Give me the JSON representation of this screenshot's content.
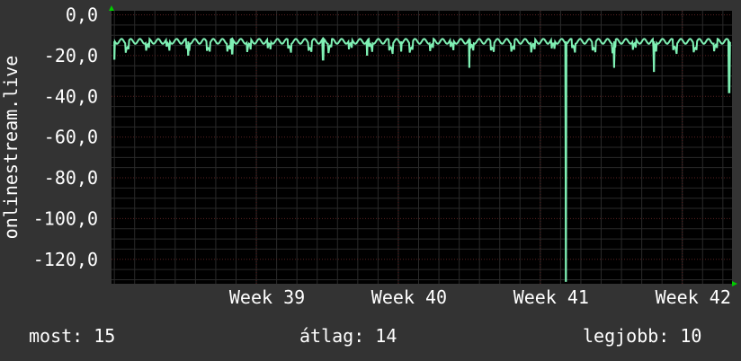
{
  "chart_data": {
    "type": "line",
    "ylabel": "onlinestream.live",
    "xlabel": "",
    "ylim": [
      -132,
      2
    ],
    "y_ticks": [
      0,
      -20,
      -40,
      -60,
      -80,
      -100,
      -120
    ],
    "y_tick_labels": [
      "0,0",
      "-20,0",
      "-40,0",
      "-60,0",
      "-80,0",
      "-100,0",
      "-120,0"
    ],
    "x_range_weeks": [
      37.98,
      42.35
    ],
    "x_ticks": [
      {
        "week": 39,
        "label": "Week 39"
      },
      {
        "week": 40,
        "label": "Week 40"
      },
      {
        "week": 41,
        "label": "Week 41"
      },
      {
        "week": 42,
        "label": "Week 42"
      }
    ],
    "series": [
      {
        "color": "#7ff0b4",
        "baseline": -13,
        "daily_dip": -18,
        "spikes": [
          {
            "week": 38.0,
            "value": -22
          },
          {
            "week": 38.52,
            "value": -20
          },
          {
            "week": 38.83,
            "value": -19
          },
          {
            "week": 39.47,
            "value": -22
          },
          {
            "week": 39.78,
            "value": -20
          },
          {
            "week": 40.02,
            "value": -18
          },
          {
            "week": 40.5,
            "value": -26
          },
          {
            "week": 41.18,
            "value": -131
          },
          {
            "week": 41.52,
            "value": -26
          },
          {
            "week": 41.8,
            "value": -28
          },
          {
            "week": 42.33,
            "value": -38
          }
        ]
      }
    ],
    "grid": true
  },
  "colors": {
    "background": "#333333",
    "plot_background": "#000000",
    "grid_major": "#5a2222",
    "grid_minor": "#2a2a2a",
    "line": "#7ff0b4",
    "axis_arrow": "#00cc00"
  },
  "stats": {
    "current": "most: 15",
    "average": "átlag: 14",
    "best": "legjobb: 10"
  }
}
